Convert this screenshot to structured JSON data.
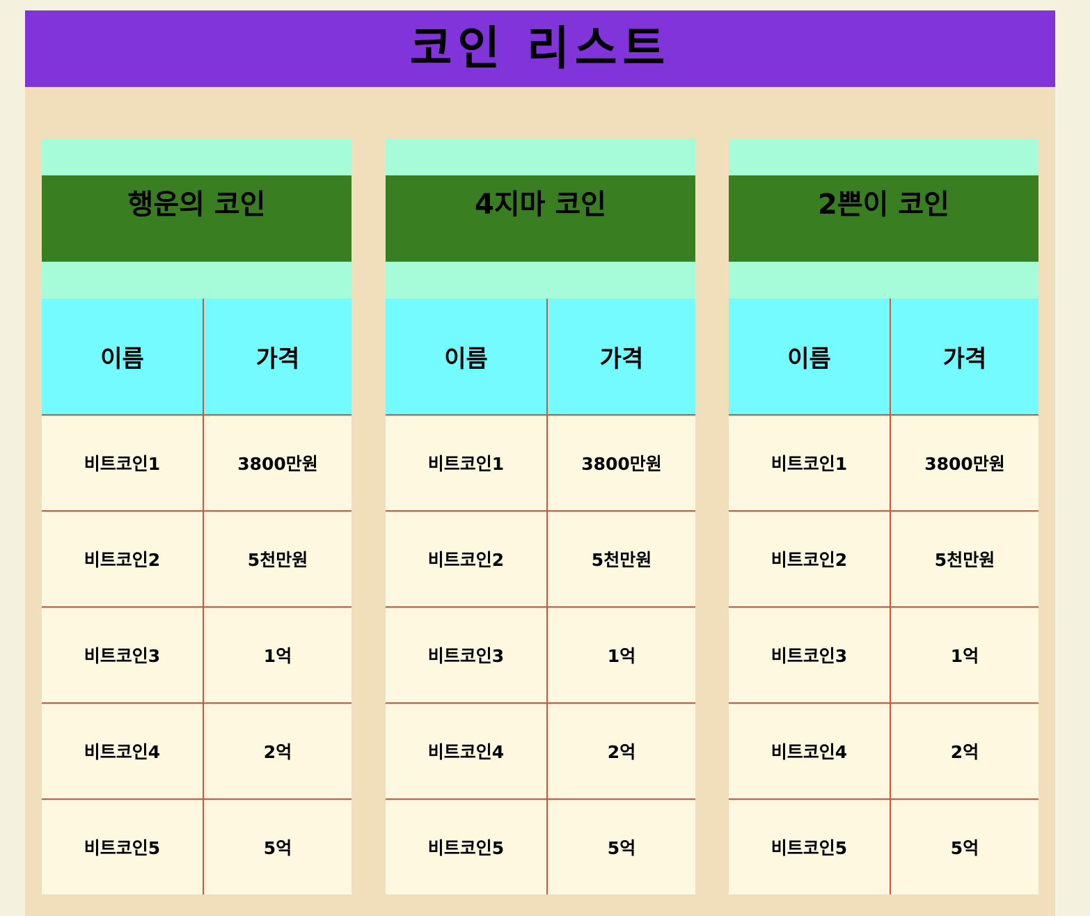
{
  "page": {
    "title": "코인 리스트"
  },
  "colors": {
    "background": "#f5f1df",
    "panel": "#f1dfbb",
    "header": "#8034da",
    "card_band": "#a6fcd8",
    "card_title": "#397f22",
    "table_header": "#73fbff",
    "table_body": "#fff8e1",
    "divider": "#ea4b33"
  },
  "cards": [
    {
      "title": "행운의 코인",
      "columns": {
        "name": "이름",
        "price": "가격"
      },
      "rows": [
        {
          "name": "비트코인1",
          "price": "3800만원"
        },
        {
          "name": "비트코인2",
          "price": "5천만원"
        },
        {
          "name": "비트코인3",
          "price": "1억"
        },
        {
          "name": "비트코인4",
          "price": "2억"
        },
        {
          "name": "비트코인5",
          "price": "5억"
        }
      ]
    },
    {
      "title": "4지마 코인",
      "columns": {
        "name": "이름",
        "price": "가격"
      },
      "rows": [
        {
          "name": "비트코인1",
          "price": "3800만원"
        },
        {
          "name": "비트코인2",
          "price": "5천만원"
        },
        {
          "name": "비트코인3",
          "price": "1억"
        },
        {
          "name": "비트코인4",
          "price": "2억"
        },
        {
          "name": "비트코인5",
          "price": "5억"
        }
      ]
    },
    {
      "title": "2쁜이 코인",
      "columns": {
        "name": "이름",
        "price": "가격"
      },
      "rows": [
        {
          "name": "비트코인1",
          "price": "3800만원"
        },
        {
          "name": "비트코인2",
          "price": "5천만원"
        },
        {
          "name": "비트코인3",
          "price": "1억"
        },
        {
          "name": "비트코인4",
          "price": "2억"
        },
        {
          "name": "비트코인5",
          "price": "5억"
        }
      ]
    }
  ]
}
